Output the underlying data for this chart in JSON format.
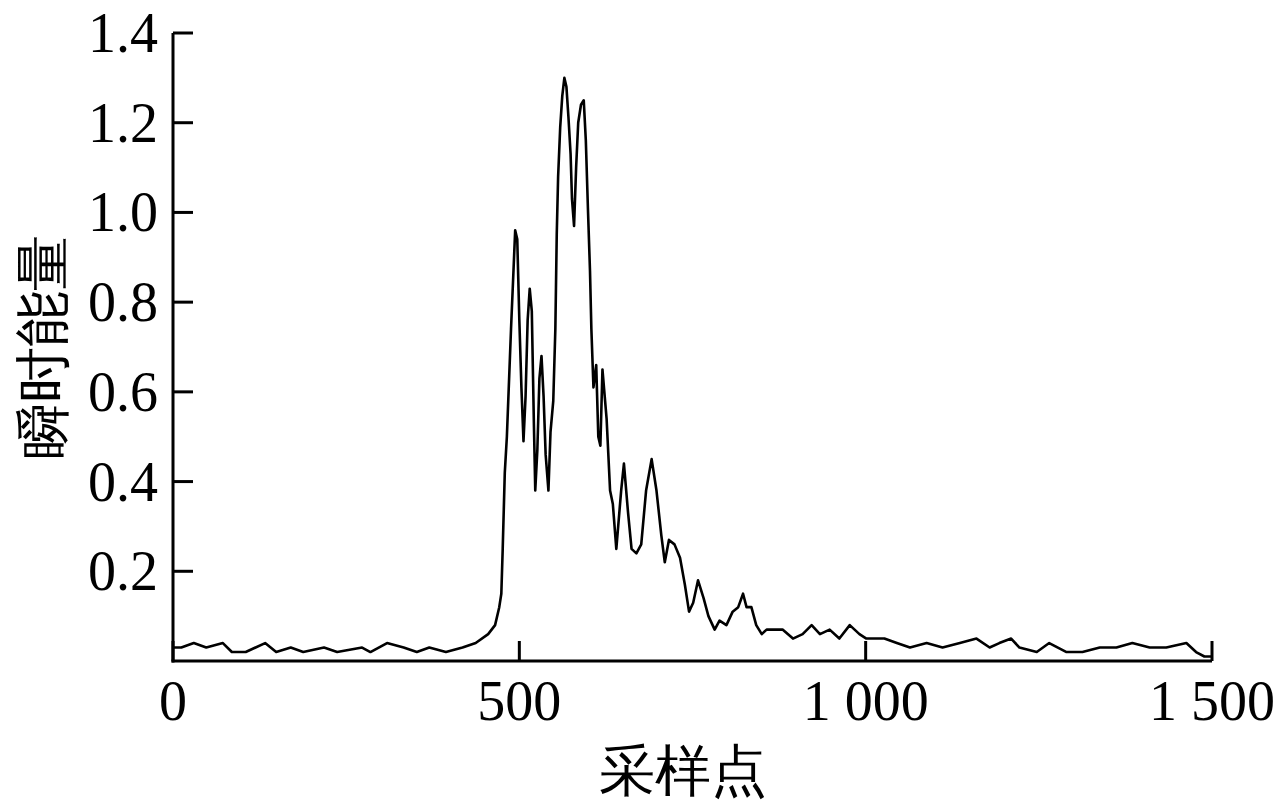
{
  "chart_data": {
    "type": "line",
    "xlabel": "采样点",
    "ylabel": "瞬时能量",
    "xlim": [
      0,
      1500
    ],
    "ylim": [
      0,
      1.4
    ],
    "xticks": [
      0,
      500,
      {
        "value": 1000,
        "label": "1 000"
      },
      {
        "value": 1500,
        "label": "1 500"
      }
    ],
    "yticks": [
      0.2,
      0.4,
      0.6,
      0.8,
      {
        "value": 1,
        "label": "1.0"
      },
      1.2,
      1.4
    ],
    "line_style": "solid",
    "series": [
      {
        "color": "#000000",
        "x": [
          2,
          12,
          30,
          48,
          72,
          85,
          105,
          133,
          149,
          170,
          188,
          218,
          237,
          273,
          285,
          309,
          333,
          352,
          370,
          394,
          418,
          437,
          455,
          465,
          471,
          474,
          476,
          479,
          482,
          485,
          488,
          491,
          494,
          497,
          500,
          503,
          506,
          509,
          512,
          515,
          518,
          521,
          523,
          526,
          529,
          532,
          535,
          538,
          542,
          545,
          549,
          552,
          554,
          556,
          559,
          562,
          565,
          568,
          571,
          574,
          576,
          579,
          582,
          585,
          589,
          593,
          596,
          599,
          602,
          604,
          607,
          611,
          614,
          617,
          620,
          626,
          631,
          635,
          640,
          647,
          651,
          657,
          662,
          669,
          676,
          683,
          691,
          698,
          705,
          710,
          716,
          724,
          732,
          739,
          745,
          751,
          758,
          766,
          773,
          782,
          789,
          799,
          808,
          816,
          823,
          828,
          835,
          842,
          850,
          857,
          880,
          895,
          909,
          922,
          934,
          948,
          962,
          977,
          991,
          1001,
          1016,
          1027,
          1045,
          1064,
          1088,
          1111,
          1136,
          1160,
          1179,
          1193,
          1210,
          1222,
          1247,
          1265,
          1290,
          1313,
          1338,
          1362,
          1385,
          1410,
          1434,
          1463,
          1477,
          1489,
          1499
        ],
        "values": [
          0.03,
          0.03,
          0.04,
          0.03,
          0.04,
          0.02,
          0.02,
          0.04,
          0.02,
          0.03,
          0.02,
          0.03,
          0.02,
          0.03,
          0.02,
          0.04,
          0.03,
          0.02,
          0.03,
          0.02,
          0.03,
          0.04,
          0.06,
          0.08,
          0.12,
          0.15,
          0.25,
          0.42,
          0.5,
          0.62,
          0.74,
          0.85,
          0.96,
          0.94,
          0.76,
          0.61,
          0.49,
          0.59,
          0.76,
          0.83,
          0.78,
          0.53,
          0.38,
          0.47,
          0.63,
          0.68,
          0.59,
          0.46,
          0.38,
          0.51,
          0.58,
          0.74,
          0.95,
          1.08,
          1.19,
          1.26,
          1.3,
          1.28,
          1.21,
          1.13,
          1.03,
          0.97,
          1.1,
          1.2,
          1.24,
          1.25,
          1.16,
          1.01,
          0.87,
          0.74,
          0.61,
          0.66,
          0.5,
          0.48,
          0.65,
          0.54,
          0.38,
          0.35,
          0.25,
          0.38,
          0.44,
          0.33,
          0.25,
          0.24,
          0.26,
          0.38,
          0.45,
          0.38,
          0.28,
          0.22,
          0.27,
          0.26,
          0.23,
          0.17,
          0.11,
          0.13,
          0.18,
          0.14,
          0.1,
          0.07,
          0.09,
          0.08,
          0.11,
          0.12,
          0.15,
          0.12,
          0.12,
          0.08,
          0.06,
          0.07,
          0.07,
          0.05,
          0.06,
          0.08,
          0.06,
          0.07,
          0.05,
          0.08,
          0.06,
          0.05,
          0.05,
          0.05,
          0.04,
          0.03,
          0.04,
          0.03,
          0.04,
          0.05,
          0.03,
          0.04,
          0.05,
          0.03,
          0.02,
          0.04,
          0.02,
          0.02,
          0.03,
          0.03,
          0.04,
          0.03,
          0.03,
          0.04,
          0.02,
          0.01,
          0.01
        ]
      }
    ]
  }
}
